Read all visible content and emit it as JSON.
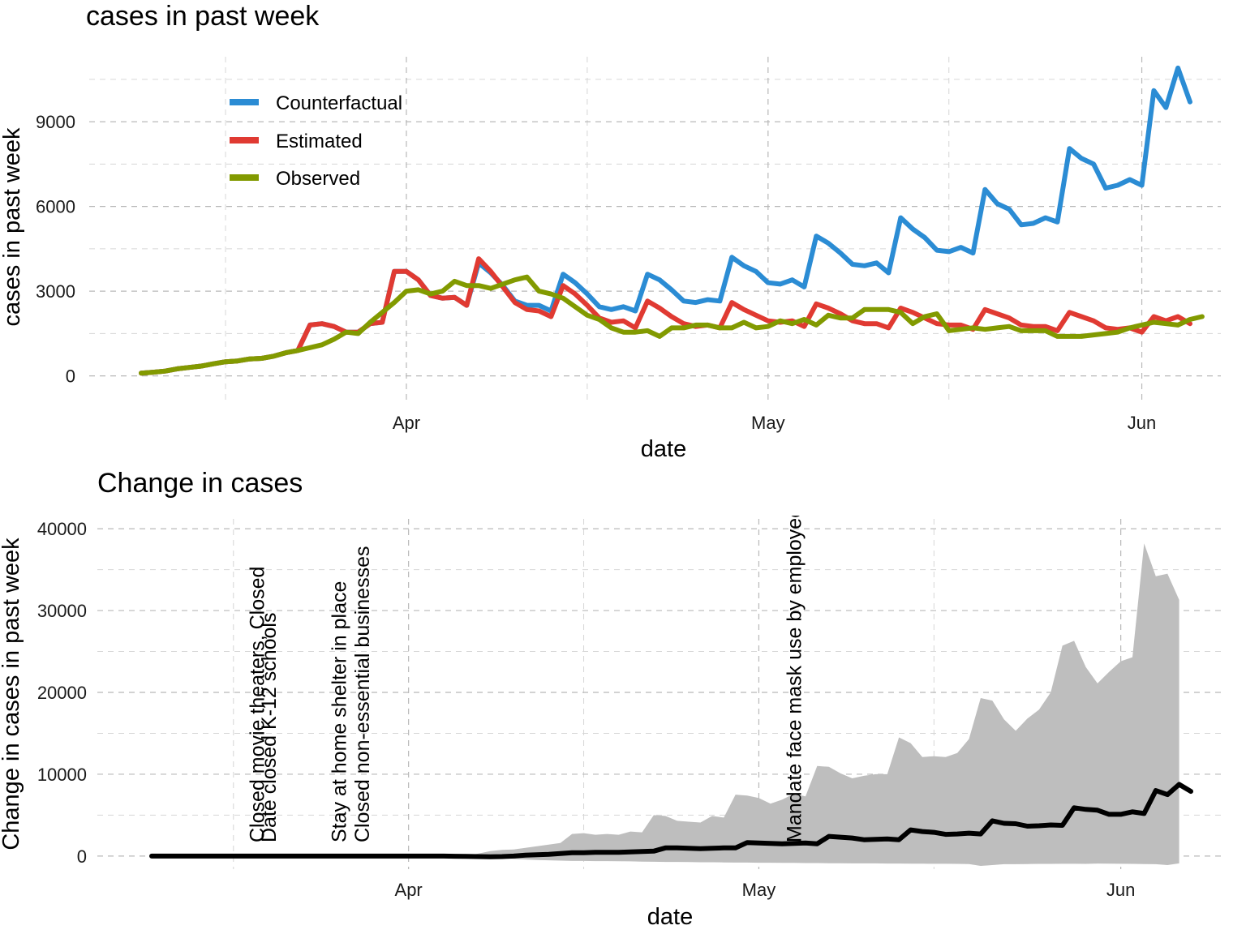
{
  "chart_data": [
    {
      "type": "line",
      "title": "cases in past week",
      "xlabel": "date",
      "ylabel": "cases in past week",
      "x_range": [
        "2020-03-10",
        "2020-06-03"
      ],
      "ylim": [
        -900,
        11300
      ],
      "x_ticks": [
        {
          "date": "2020-04-01",
          "label": "Apr"
        },
        {
          "date": "2020-05-01",
          "label": "May"
        },
        {
          "date": "2020-06-01",
          "label": "Jun"
        }
      ],
      "x_minor_ticks": [
        "2020-03-17",
        "2020-04-16",
        "2020-05-16"
      ],
      "y_ticks": [
        0,
        3000,
        6000,
        9000
      ],
      "y_minor_ticks": [
        1500,
        4500,
        7500,
        10500
      ],
      "grid": true,
      "legend_position": "top-left",
      "start_date": "2020-03-10",
      "series": [
        {
          "name": "Counterfactual",
          "color": "#2b8cd4",
          "values": [
            100,
            130,
            170,
            250,
            300,
            350,
            430,
            500,
            530,
            600,
            620,
            700,
            820,
            900,
            1800,
            1850,
            1750,
            1550,
            1550,
            1850,
            1900,
            3700,
            3700,
            3400,
            2850,
            2750,
            2780,
            2500,
            4000,
            3650,
            3200,
            2650,
            2500,
            2500,
            2300,
            3600,
            3300,
            2900,
            2450,
            2350,
            2450,
            2300,
            3600,
            3400,
            3050,
            2650,
            2600,
            2700,
            2650,
            4200,
            3900,
            3700,
            3300,
            3250,
            3400,
            3150,
            4950,
            4700,
            4350,
            3950,
            3900,
            4000,
            3650,
            5600,
            5200,
            4900,
            4450,
            4400,
            4550,
            4350,
            6600,
            6100,
            5900,
            5350,
            5400,
            5600,
            5450,
            8050,
            7700,
            7500,
            6650,
            6750,
            6950,
            6750,
            10100,
            9500,
            10900,
            9700
          ]
        },
        {
          "name": "Estimated",
          "color": "#e03a32",
          "values": [
            100,
            130,
            170,
            250,
            300,
            350,
            430,
            500,
            530,
            600,
            620,
            700,
            820,
            900,
            1800,
            1850,
            1750,
            1550,
            1550,
            1850,
            1900,
            3700,
            3700,
            3400,
            2850,
            2750,
            2780,
            2500,
            4150,
            3700,
            3150,
            2600,
            2350,
            2300,
            2100,
            3200,
            2900,
            2500,
            2050,
            1900,
            1950,
            1700,
            2650,
            2400,
            2100,
            1850,
            1750,
            1800,
            1700,
            2600,
            2350,
            2150,
            1950,
            1900,
            1950,
            1750,
            2550,
            2400,
            2200,
            1950,
            1850,
            1850,
            1700,
            2400,
            2250,
            2050,
            1850,
            1800,
            1800,
            1650,
            2350,
            2200,
            2050,
            1800,
            1750,
            1750,
            1600,
            2250,
            2100,
            1950,
            1700,
            1650,
            1700,
            1550,
            2100,
            1950,
            2100,
            1850
          ]
        },
        {
          "name": "Observed",
          "color": "#829a00",
          "values": [
            100,
            130,
            170,
            250,
            300,
            350,
            430,
            500,
            530,
            600,
            620,
            700,
            820,
            900,
            1000,
            1100,
            1300,
            1550,
            1500,
            1900,
            2250,
            2600,
            3000,
            3050,
            2900,
            3000,
            3350,
            3200,
            3200,
            3100,
            3250,
            3400,
            3500,
            3000,
            2900,
            2750,
            2450,
            2150,
            2000,
            1700,
            1550,
            1550,
            1600,
            1400,
            1700,
            1700,
            1800,
            1800,
            1700,
            1700,
            1900,
            1700,
            1750,
            1950,
            1850,
            2000,
            1800,
            2150,
            2050,
            2050,
            2350,
            2350,
            2350,
            2250,
            1850,
            2100,
            2200,
            1600,
            1650,
            1700,
            1650,
            1700,
            1750,
            1600,
            1600,
            1600,
            1400,
            1400,
            1400,
            1450,
            1500,
            1550,
            1700,
            1800,
            1900,
            1850,
            1800,
            2000,
            2100
          ]
        }
      ]
    },
    {
      "type": "area",
      "title": "Change in cases",
      "xlabel": "date",
      "ylabel": "Change in cases in past week",
      "x_range": [
        "2020-03-10",
        "2020-06-03"
      ],
      "ylim": [
        -1600,
        41200
      ],
      "x_ticks": [
        {
          "date": "2020-04-01",
          "label": "Apr"
        },
        {
          "date": "2020-05-01",
          "label": "May"
        },
        {
          "date": "2020-06-01",
          "label": "Jun"
        }
      ],
      "x_minor_ticks": [
        "2020-03-17",
        "2020-04-16",
        "2020-05-16"
      ],
      "y_ticks": [
        0,
        10000,
        20000,
        30000,
        40000
      ],
      "y_minor_ticks": [
        5000,
        15000,
        25000,
        35000
      ],
      "grid": true,
      "start_date": "2020-03-10",
      "band_color": "#bebebe",
      "line_color": "#000000",
      "series": [
        {
          "role": "mean",
          "values": [
            0,
            0,
            0,
            0,
            0,
            0,
            0,
            0,
            0,
            0,
            0,
            0,
            0,
            0,
            0,
            0,
            0,
            0,
            0,
            0,
            0,
            0,
            0,
            0,
            0,
            0,
            -20,
            -40,
            -60,
            -80,
            -60,
            0,
            100,
            150,
            200,
            300,
            400,
            400,
            450,
            450,
            450,
            500,
            550,
            600,
            1000,
            1000,
            950,
            900,
            950,
            1000,
            1000,
            1650,
            1600,
            1550,
            1500,
            1550,
            1600,
            1500,
            2400,
            2300,
            2200,
            2000,
            2050,
            2100,
            2000,
            3200,
            3000,
            2900,
            2650,
            2700,
            2800,
            2700,
            4300,
            4000,
            3950,
            3650,
            3700,
            3800,
            3750,
            5900,
            5700,
            5600,
            5100,
            5100,
            5400,
            5200,
            8000,
            7500,
            8750,
            7900
          ]
        },
        {
          "role": "upper",
          "values": [
            0,
            0,
            0,
            0,
            0,
            0,
            0,
            0,
            0,
            0,
            0,
            0,
            0,
            0,
            0,
            0,
            0,
            0,
            0,
            0,
            0,
            0,
            0,
            0,
            0,
            0,
            10,
            30,
            300,
            600,
            750,
            800,
            1000,
            1200,
            1400,
            1600,
            2700,
            2800,
            2600,
            2700,
            2600,
            3000,
            2900,
            5000,
            4900,
            4300,
            4200,
            4100,
            4900,
            4700,
            7500,
            7400,
            7100,
            6400,
            6900,
            7600,
            7300,
            11000,
            10900,
            10100,
            9500,
            9800,
            10000,
            10000,
            14500,
            13800,
            12100,
            12200,
            12100,
            12600,
            14300,
            19300,
            19000,
            16700,
            15300,
            16800,
            17900,
            20000,
            25700,
            26300,
            23100,
            21100,
            22500,
            23800,
            24300,
            38200,
            34200,
            34500,
            31300
          ]
        },
        {
          "role": "lower",
          "values": [
            0,
            0,
            0,
            0,
            0,
            0,
            0,
            0,
            0,
            0,
            0,
            0,
            0,
            0,
            0,
            0,
            0,
            0,
            0,
            0,
            0,
            0,
            0,
            0,
            0,
            0,
            -20,
            -60,
            -120,
            -180,
            -280,
            -350,
            -420,
            -480,
            -520,
            -560,
            -600,
            -600,
            -620,
            -620,
            -640,
            -650,
            -680,
            -700,
            -720,
            -720,
            -740,
            -760,
            -760,
            -780,
            -800,
            -800,
            -820,
            -820,
            -830,
            -840,
            -860,
            -860,
            -880,
            -880,
            -900,
            -900,
            -900,
            -920,
            -920,
            -940,
            -940,
            -950,
            -950,
            -960,
            -980,
            -1200,
            -1100,
            -1000,
            -1000,
            -980,
            -960,
            -960,
            -950,
            -950,
            -960,
            -920,
            -930,
            -950,
            -960,
            -980,
            -1000,
            -1100,
            -900
          ]
        }
      ],
      "annotations": [
        {
          "date": "2020-03-19",
          "text": "Closed movie theaters, Closed",
          "color": "#000000"
        },
        {
          "date": "2020-03-20",
          "text": "Date closed K-12 schools",
          "color": "#000000"
        },
        {
          "date": "2020-03-26",
          "text": "Stay at home  shelter in place",
          "color": "#000000"
        },
        {
          "date": "2020-03-28",
          "text": "Closed non-essential businesses",
          "color": "#000000"
        },
        {
          "date": "2020-05-04",
          "text": "Mandate face mask use by employees",
          "color": "#000000"
        }
      ]
    }
  ]
}
